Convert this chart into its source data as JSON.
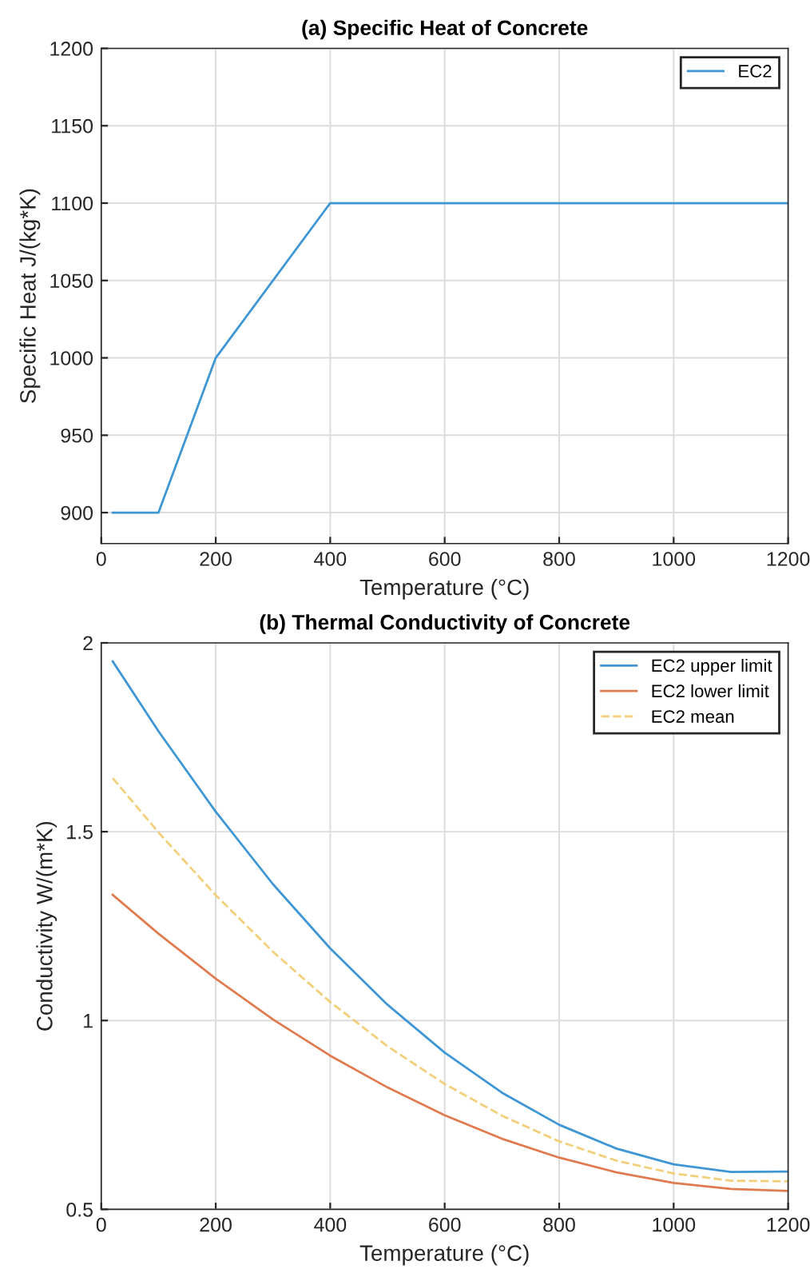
{
  "chart_data": [
    {
      "type": "line",
      "title": "(a) Specific Heat of Concrete",
      "xlabel": "Temperature (°C)",
      "ylabel": "Specific Heat J/(kg*K)",
      "xlim": [
        0,
        1200
      ],
      "xticks": [
        0,
        200,
        400,
        600,
        800,
        1000,
        1200
      ],
      "ylim": [
        880,
        1200
      ],
      "yticks": [
        900,
        950,
        1000,
        1050,
        1100,
        1150,
        1200
      ],
      "grid": true,
      "legend": "top right",
      "series": [
        {
          "name": "EC2",
          "color": "#3f96d4",
          "x": [
            20,
            100,
            200,
            400,
            1200
          ],
          "values": [
            900,
            900,
            1000,
            1100,
            1100
          ]
        }
      ]
    },
    {
      "type": "line",
      "title": "(b) Thermal Conductivity of Concrete",
      "xlabel": "Temperature (°C)",
      "ylabel": "Conductivity W/(m*K)",
      "xlim": [
        0,
        1200
      ],
      "xticks": [
        0,
        200,
        400,
        600,
        800,
        1000,
        1200
      ],
      "ylim": [
        0.5,
        2
      ],
      "yticks": [
        0.5,
        1,
        1.5,
        2
      ],
      "grid": true,
      "legend": "top right",
      "series": [
        {
          "name": "EC2 upper limit",
          "color": "#3f96d4",
          "x": [
            20,
            100,
            200,
            300,
            400,
            500,
            600,
            700,
            800,
            900,
            1000,
            1100,
            1200
          ],
          "values": [
            1.951,
            1.766,
            1.553,
            1.361,
            1.191,
            1.042,
            0.915,
            0.809,
            0.724,
            0.661,
            0.619,
            0.599,
            0.6
          ]
        },
        {
          "name": "EC2 lower limit",
          "color": "#e07b50",
          "x": [
            20,
            100,
            200,
            300,
            400,
            500,
            600,
            700,
            800,
            900,
            1000,
            1100,
            1200
          ],
          "values": [
            1.333,
            1.23,
            1.111,
            1.003,
            0.907,
            0.823,
            0.749,
            0.687,
            0.637,
            0.598,
            0.57,
            0.554,
            0.549
          ]
        },
        {
          "name": "EC2 mean",
          "color": "#f2cf7a",
          "line_style": "dashed",
          "x": [
            20,
            100,
            200,
            300,
            400,
            500,
            600,
            700,
            800,
            900,
            1000,
            1100,
            1200
          ],
          "values": [
            1.642,
            1.498,
            1.332,
            1.182,
            1.049,
            0.932,
            0.832,
            0.748,
            0.68,
            0.629,
            0.595,
            0.576,
            0.574
          ]
        }
      ]
    }
  ]
}
